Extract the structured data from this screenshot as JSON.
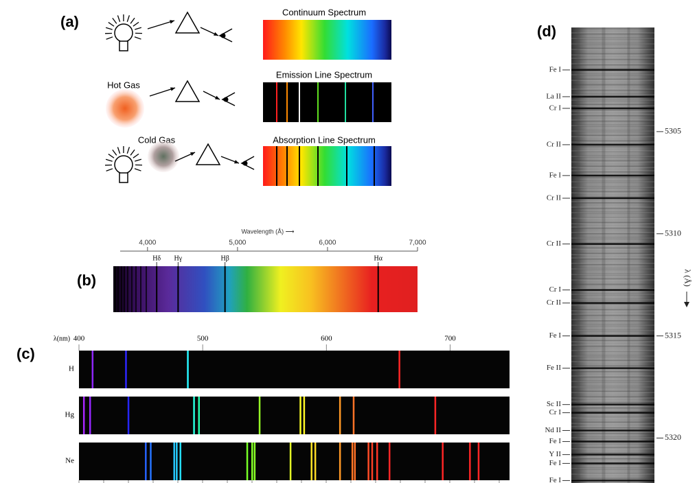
{
  "panel_a": {
    "label": "(a)",
    "continuum_title": "Continuum Spectrum",
    "hot_gas": "Hot Gas",
    "emission_title": "Emission Line Spectrum",
    "cold_gas": "Cold Gas",
    "absorption_title": "Absorption Line Spectrum"
  },
  "panel_b": {
    "label": "(b)",
    "axis_title": "Wavelength (Å) ⟶",
    "xlim": [
      3620,
      7000
    ],
    "xticks": [
      {
        "value": 4000,
        "label": "4,000"
      },
      {
        "value": 5000,
        "label": "5,000"
      },
      {
        "value": 6000,
        "label": "6,000"
      },
      {
        "value": 7000,
        "label": "7,000"
      }
    ],
    "lines": [
      {
        "name": "Hδ",
        "value": 4102
      },
      {
        "name": "Hγ",
        "value": 4340
      },
      {
        "name": "Hβ",
        "value": 4861
      },
      {
        "name": "Hα",
        "value": 6563
      }
    ]
  },
  "panel_c": {
    "label": "(c)",
    "axis_title": "λ(nm)",
    "xlim": [
      400,
      748
    ],
    "xticks": [
      400,
      500,
      600,
      700
    ],
    "rows": [
      {
        "name": "H",
        "lines": [
          411,
          438,
          488,
          659
        ]
      },
      {
        "name": "Hg",
        "lines": [
          404,
          409,
          440,
          493,
          497,
          546,
          579,
          582,
          611,
          622,
          688
        ]
      },
      {
        "name": "Ne",
        "lines": [
          454,
          458,
          477,
          479,
          482,
          536,
          540,
          542,
          571,
          588,
          591,
          611,
          621,
          623,
          634,
          637,
          641,
          651,
          694,
          716,
          723
        ]
      }
    ]
  },
  "panel_d": {
    "label": "(d)",
    "axis_title": "λ (Å)",
    "ylim": [
      5299.9,
      5322.2
    ],
    "yticks": [
      5305,
      5310,
      5315,
      5320
    ],
    "lines": [
      {
        "name": "Fe I",
        "value": 5301.98
      },
      {
        "name": "La II",
        "value": 5303.29
      },
      {
        "name": "Cr I",
        "value": 5303.86
      },
      {
        "name": "Cr II",
        "value": 5305.64
      },
      {
        "name": "Fe I",
        "value": 5307.15
      },
      {
        "name": "Cr II",
        "value": 5308.26
      },
      {
        "name": "Cr II",
        "value": 5310.5
      },
      {
        "name": "Cr I",
        "value": 5312.75
      },
      {
        "name": "Cr II",
        "value": 5313.39
      },
      {
        "name": "Fe I",
        "value": 5315.0
      },
      {
        "name": "Fe II",
        "value": 5316.58
      },
      {
        "name": "Sc II",
        "value": 5318.36
      },
      {
        "name": "Cr I",
        "value": 5318.76
      },
      {
        "name": "Nd II",
        "value": 5319.63
      },
      {
        "name": "Fe I",
        "value": 5320.17
      },
      {
        "name": "Y II",
        "value": 5320.81
      },
      {
        "name": "Fe I",
        "value": 5321.24
      },
      {
        "name": "Fe I",
        "value": 5322.08
      }
    ]
  }
}
